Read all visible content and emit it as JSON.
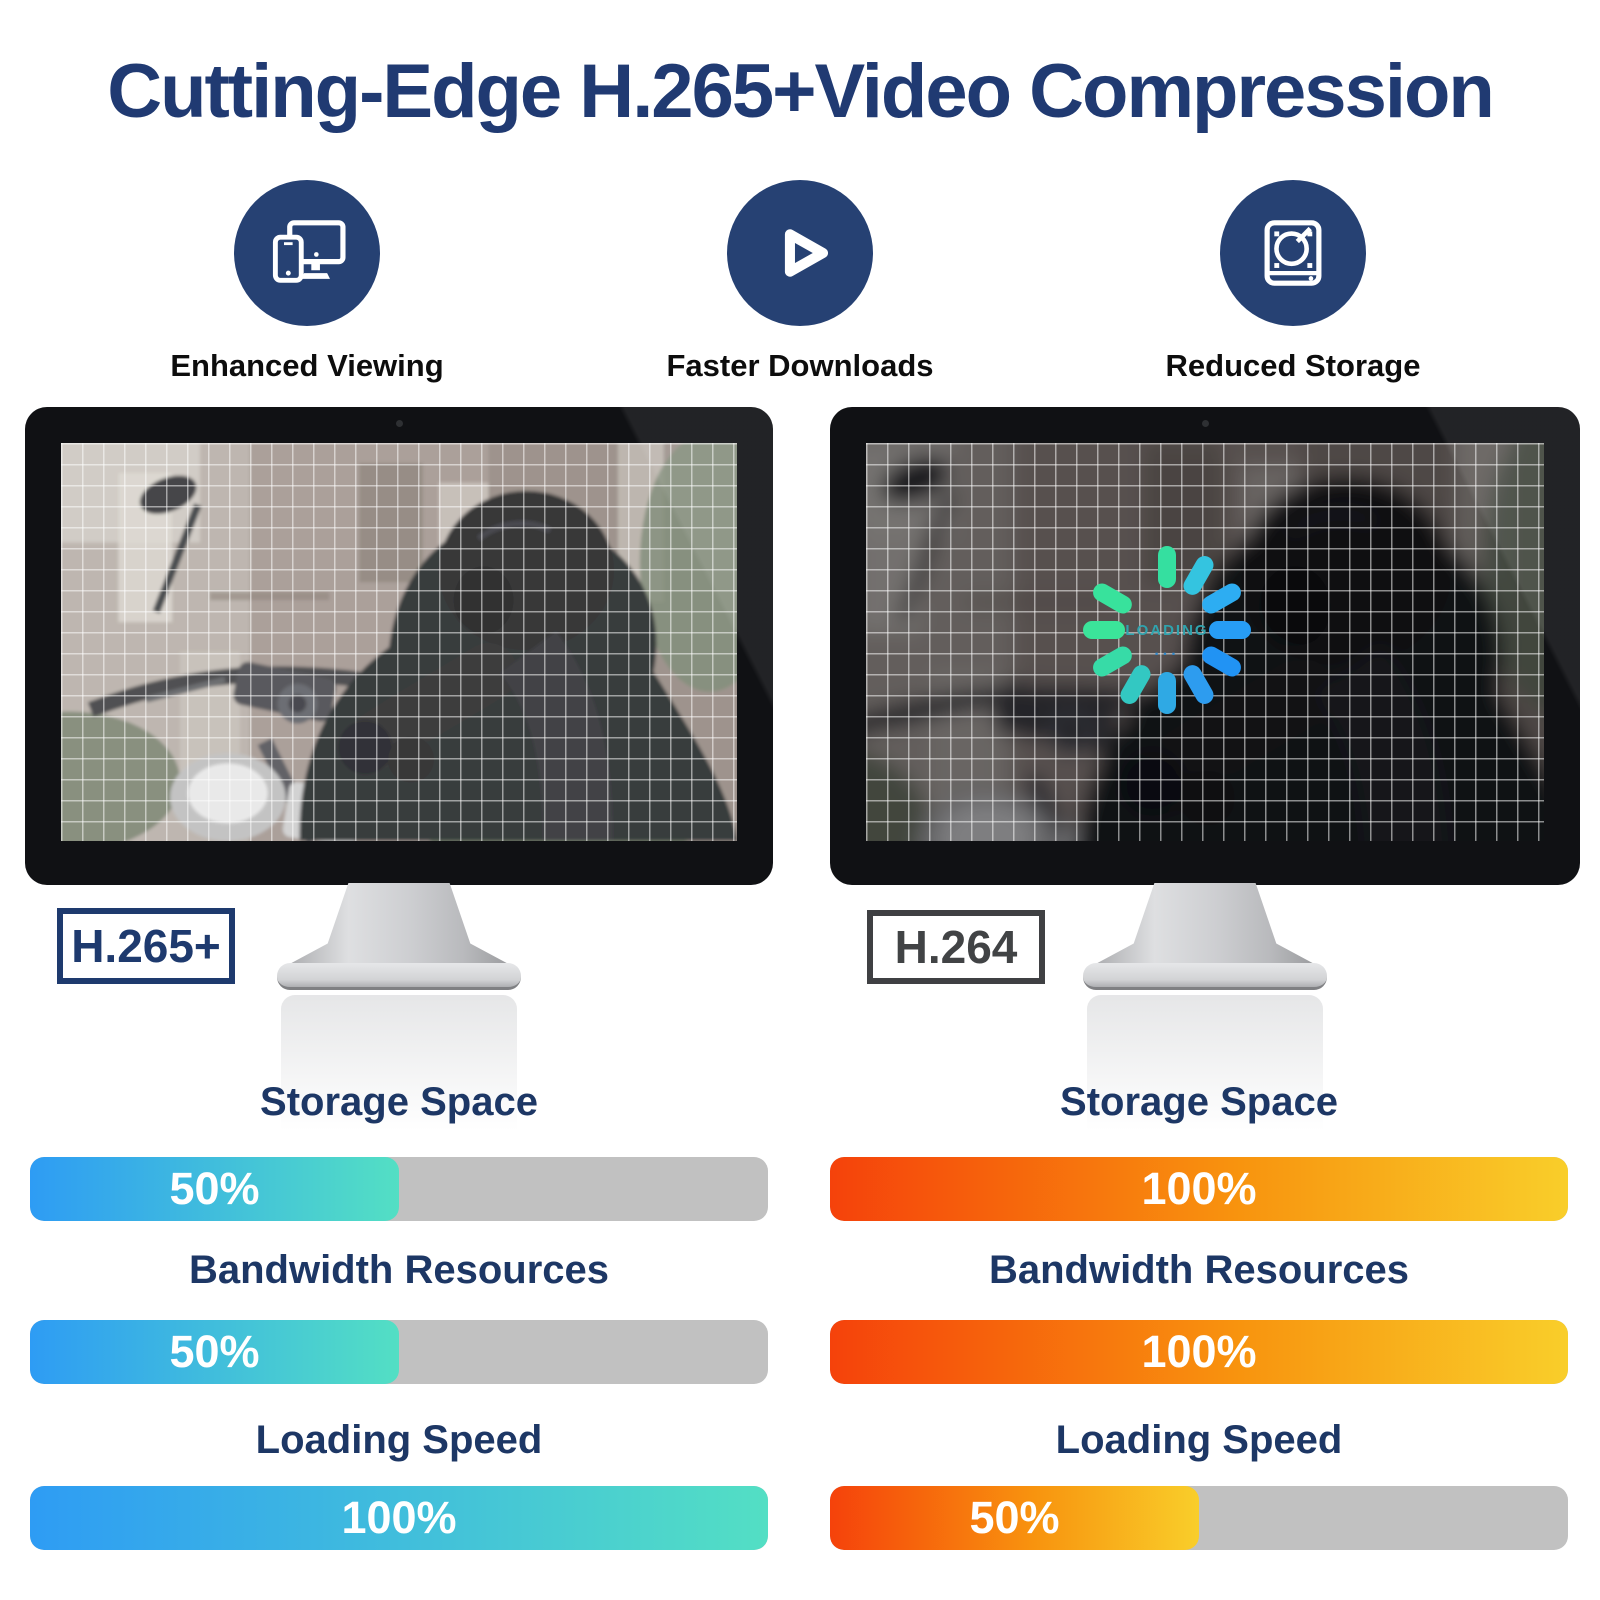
{
  "header": {
    "title": "Cutting-Edge H.265+Video Compression"
  },
  "features": [
    {
      "icon": "devices-icon",
      "label": "Enhanced Viewing"
    },
    {
      "icon": "play-icon",
      "label": "Faster Downloads"
    },
    {
      "icon": "storage-icon",
      "label": "Reduced Storage"
    }
  ],
  "monitors": {
    "left": {
      "codec_label": "H.265+"
    },
    "right": {
      "codec_label": "H.264",
      "loading_text": "LOADING",
      "loading_dots": "..."
    }
  },
  "comparison": {
    "left": {
      "name": "H.265+",
      "bars": [
        {
          "label": "Storage Space",
          "value": "50%",
          "percent": 50
        },
        {
          "label": "Bandwidth Resources",
          "value": "50%",
          "percent": 50
        },
        {
          "label": "Loading Speed",
          "value": "100%",
          "percent": 100
        }
      ]
    },
    "right": {
      "name": "H.264",
      "bars": [
        {
          "label": "Storage Space",
          "value": "100%",
          "percent": 100
        },
        {
          "label": "Bandwidth Resources",
          "value": "100%",
          "percent": 100
        },
        {
          "label": "Loading Speed",
          "value": "50%",
          "percent": 50
        }
      ]
    }
  },
  "chart_data": {
    "type": "bar",
    "unit": "%",
    "categories": [
      "Storage Space",
      "Bandwidth Resources",
      "Loading Speed"
    ],
    "series": [
      {
        "name": "H.265+",
        "values": [
          50,
          50,
          100
        ]
      },
      {
        "name": "H.264",
        "values": [
          100,
          100,
          50
        ]
      }
    ]
  },
  "colors": {
    "title_navy": "#203a72",
    "icon_circle_navy": "#264173",
    "bar_title_navy": "#1d3765",
    "cool_gradient_start": "#2e9cf4",
    "cool_gradient_end": "#53dfc4",
    "warm_gradient_start": "#f5420b",
    "warm_gradient_mid": "#f8930e",
    "warm_gradient_end": "#f9ce2a",
    "track_gray": "#c1c1c1",
    "codec_left_navy": "#1e3a6e",
    "codec_right_gray": "#414345"
  },
  "spinner": {
    "segments": [
      {
        "angle": 0,
        "color": "#35dfa0"
      },
      {
        "angle": 30,
        "color": "#34c4e0"
      },
      {
        "angle": 60,
        "color": "#2dadf2"
      },
      {
        "angle": 90,
        "color": "#279df5"
      },
      {
        "angle": 120,
        "color": "#2193f4"
      },
      {
        "angle": 150,
        "color": "#2d9cef"
      },
      {
        "angle": 180,
        "color": "#2fa9e4"
      },
      {
        "angle": 210,
        "color": "#33c8c2"
      },
      {
        "angle": 240,
        "color": "#37dba7"
      },
      {
        "angle": 270,
        "color": "#3be49a"
      },
      {
        "angle": 300,
        "color": "#38e29c"
      }
    ]
  }
}
